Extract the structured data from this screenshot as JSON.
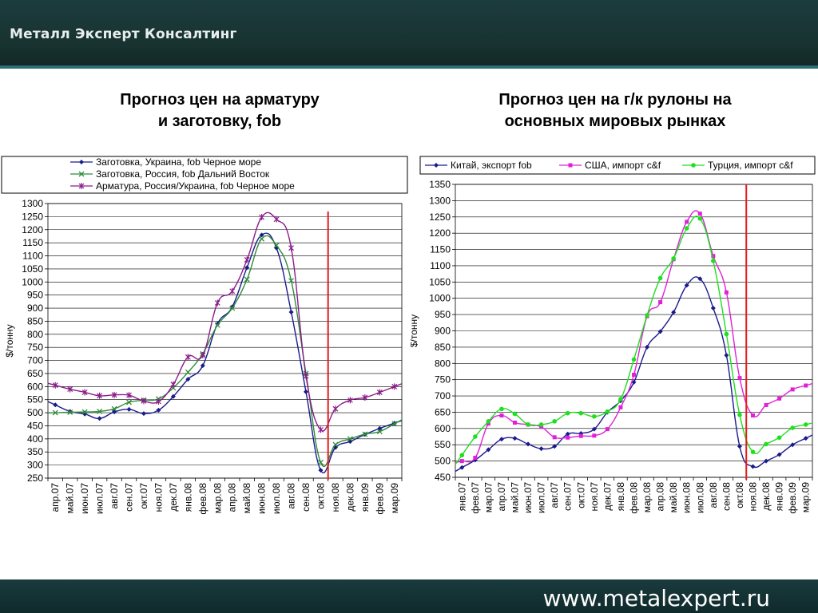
{
  "header": {
    "company": "Металл Эксперт Консалтинг"
  },
  "footer": {
    "website": "www.metalexpert.ru"
  },
  "charts": [
    {
      "title_lines": [
        "Прогноз цен на арматуру",
        "и заготовку, fob"
      ]
    },
    {
      "title_lines": [
        "Прогноз цен на г/к рулоны на",
        "основных мировых рынках"
      ]
    }
  ],
  "chart_data": [
    {
      "type": "line",
      "title": "Прогноз цен на арматуру и заготовку, fob",
      "ylabel": "$/тонну",
      "xlabel": "",
      "ylim": [
        250,
        1300
      ],
      "ystep": 50,
      "grid": true,
      "legend_position": "top",
      "forecast_marker_after": "окт.08",
      "forecast_marker_color": "#e81c1c",
      "x": [
        "апр.07",
        "май.07",
        "июн.07",
        "июл.07",
        "авг.07",
        "сен.07",
        "окт.07",
        "ноя.07",
        "дек.07",
        "янв.08",
        "фев.08",
        "мар.08",
        "апр.08",
        "май.08",
        "июн.08",
        "июл.08",
        "авг.08",
        "сен.08",
        "окт.08",
        "ноя.08",
        "дек.08",
        "янв.09",
        "фев.09",
        "мар.09"
      ],
      "series": [
        {
          "name": "Заготовка, Украина, fob Черное море",
          "color": "#1a1a8c",
          "marker": "diamond",
          "values": [
            530,
            505,
            495,
            478,
            503,
            513,
            497,
            510,
            562,
            628,
            680,
            840,
            905,
            1055,
            1180,
            1130,
            885,
            580,
            280,
            367,
            390,
            417,
            440,
            460
          ]
        },
        {
          "name": "Заготовка, Россия, fob Дальний Восток",
          "color": "#2e8b3a",
          "marker": "x",
          "values": [
            500,
            502,
            503,
            505,
            515,
            540,
            548,
            553,
            595,
            655,
            725,
            835,
            900,
            1010,
            1165,
            1140,
            1005,
            650,
            310,
            378,
            400,
            418,
            428,
            458
          ]
        },
        {
          "name": "Арматура, Россия/Украина, fob Черное море",
          "color": "#8b1c8b",
          "marker": "star",
          "values": [
            605,
            590,
            578,
            565,
            568,
            567,
            545,
            543,
            608,
            713,
            720,
            920,
            965,
            1085,
            1248,
            1240,
            1130,
            640,
            435,
            515,
            548,
            558,
            578,
            600
          ]
        }
      ]
    },
    {
      "type": "line",
      "title": "Прогноз цен на г/к рулоны на основных мировых рынках",
      "ylabel": "$/тонну",
      "xlabel": "",
      "ylim": [
        450,
        1350
      ],
      "ystep": 50,
      "grid": true,
      "legend_position": "top",
      "forecast_marker_after": "окт.08",
      "forecast_marker_color": "#e81c1c",
      "x": [
        "янв.07",
        "фев.07",
        "мар.07",
        "апр.07",
        "май.07",
        "июн.07",
        "июл.07",
        "авг.07",
        "сен.07",
        "окт.07",
        "ноя.07",
        "дек.07",
        "янв.08",
        "фев.08",
        "мар.08",
        "апр.08",
        "май.08",
        "июн.08",
        "июл.08",
        "авг.08",
        "сен.08",
        "окт.08",
        "ноя.08",
        "дек.08",
        "янв.09",
        "фев.09",
        "мар.09"
      ],
      "series": [
        {
          "name": "Китай, экспорт fob",
          "color": "#1a1a8c",
          "marker": "diamond",
          "values": [
            480,
            503,
            535,
            567,
            570,
            552,
            538,
            545,
            583,
            585,
            598,
            650,
            685,
            742,
            850,
            898,
            957,
            1040,
            1060,
            970,
            825,
            545,
            483,
            500,
            520,
            550,
            570
          ]
        },
        {
          "name": "США, импорт c&f",
          "color": "#e020d8",
          "marker": "square",
          "values": [
            500,
            510,
            615,
            640,
            618,
            612,
            605,
            573,
            572,
            577,
            578,
            598,
            665,
            765,
            945,
            988,
            1120,
            1235,
            1260,
            1130,
            1018,
            755,
            640,
            672,
            692,
            720,
            732
          ]
        },
        {
          "name": "Турция, импорт c&f",
          "color": "#1ee01e",
          "marker": "circle",
          "values": [
            518,
            575,
            622,
            660,
            645,
            612,
            612,
            622,
            647,
            647,
            637,
            652,
            690,
            812,
            948,
            1062,
            1122,
            1215,
            1245,
            1115,
            890,
            642,
            528,
            552,
            572,
            602,
            612
          ]
        }
      ]
    }
  ]
}
